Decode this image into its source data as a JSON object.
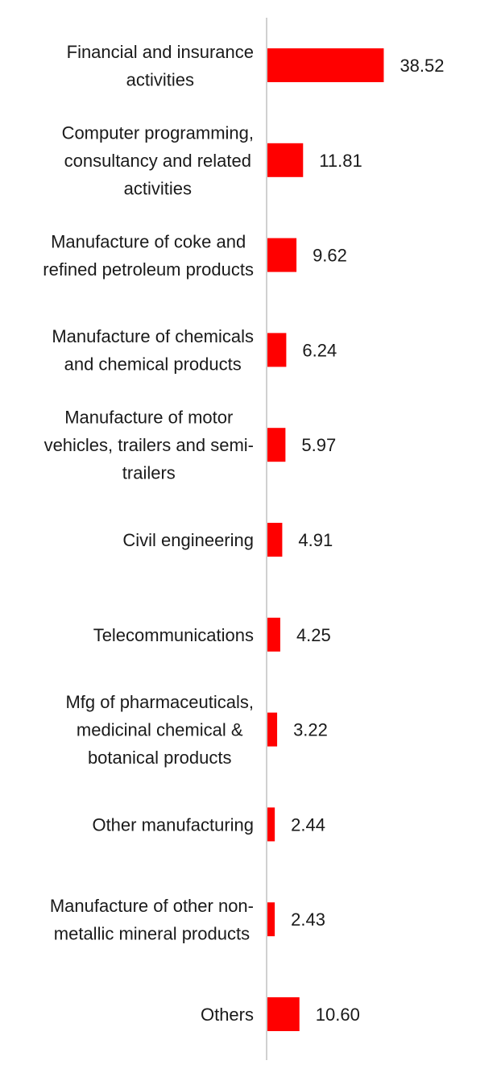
{
  "chart_data": {
    "type": "bar",
    "orientation": "horizontal",
    "categories": [
      [
        "Financial and insurance",
        "activities"
      ],
      [
        "Computer programming,",
        "consultancy and related",
        "activities"
      ],
      [
        "Manufacture of coke and",
        "refined petroleum products"
      ],
      [
        "Manufacture of chemicals",
        "and chemical products"
      ],
      [
        "Manufacture of motor",
        "vehicles, trailers and semi-",
        "trailers"
      ],
      [
        "Civil engineering"
      ],
      [
        "Telecommunications"
      ],
      [
        "Mfg of pharmaceuticals,",
        "medicinal chemical &",
        "botanical products"
      ],
      [
        "Other manufacturing"
      ],
      [
        "Manufacture of other non-",
        "metallic mineral products"
      ],
      [
        "Others"
      ]
    ],
    "values": [
      38.52,
      11.81,
      9.62,
      6.24,
      5.97,
      4.91,
      4.25,
      3.22,
      2.44,
      2.43,
      10.6
    ],
    "value_labels": [
      "38.52",
      "11.81",
      "9.62",
      "6.24",
      "5.97",
      "4.91",
      "4.25",
      "3.22",
      "2.44",
      "2.43",
      "10.60"
    ],
    "bar_color": "#ff0000",
    "axis_color": "#d0d0d0",
    "grid": false,
    "legend": "none"
  }
}
